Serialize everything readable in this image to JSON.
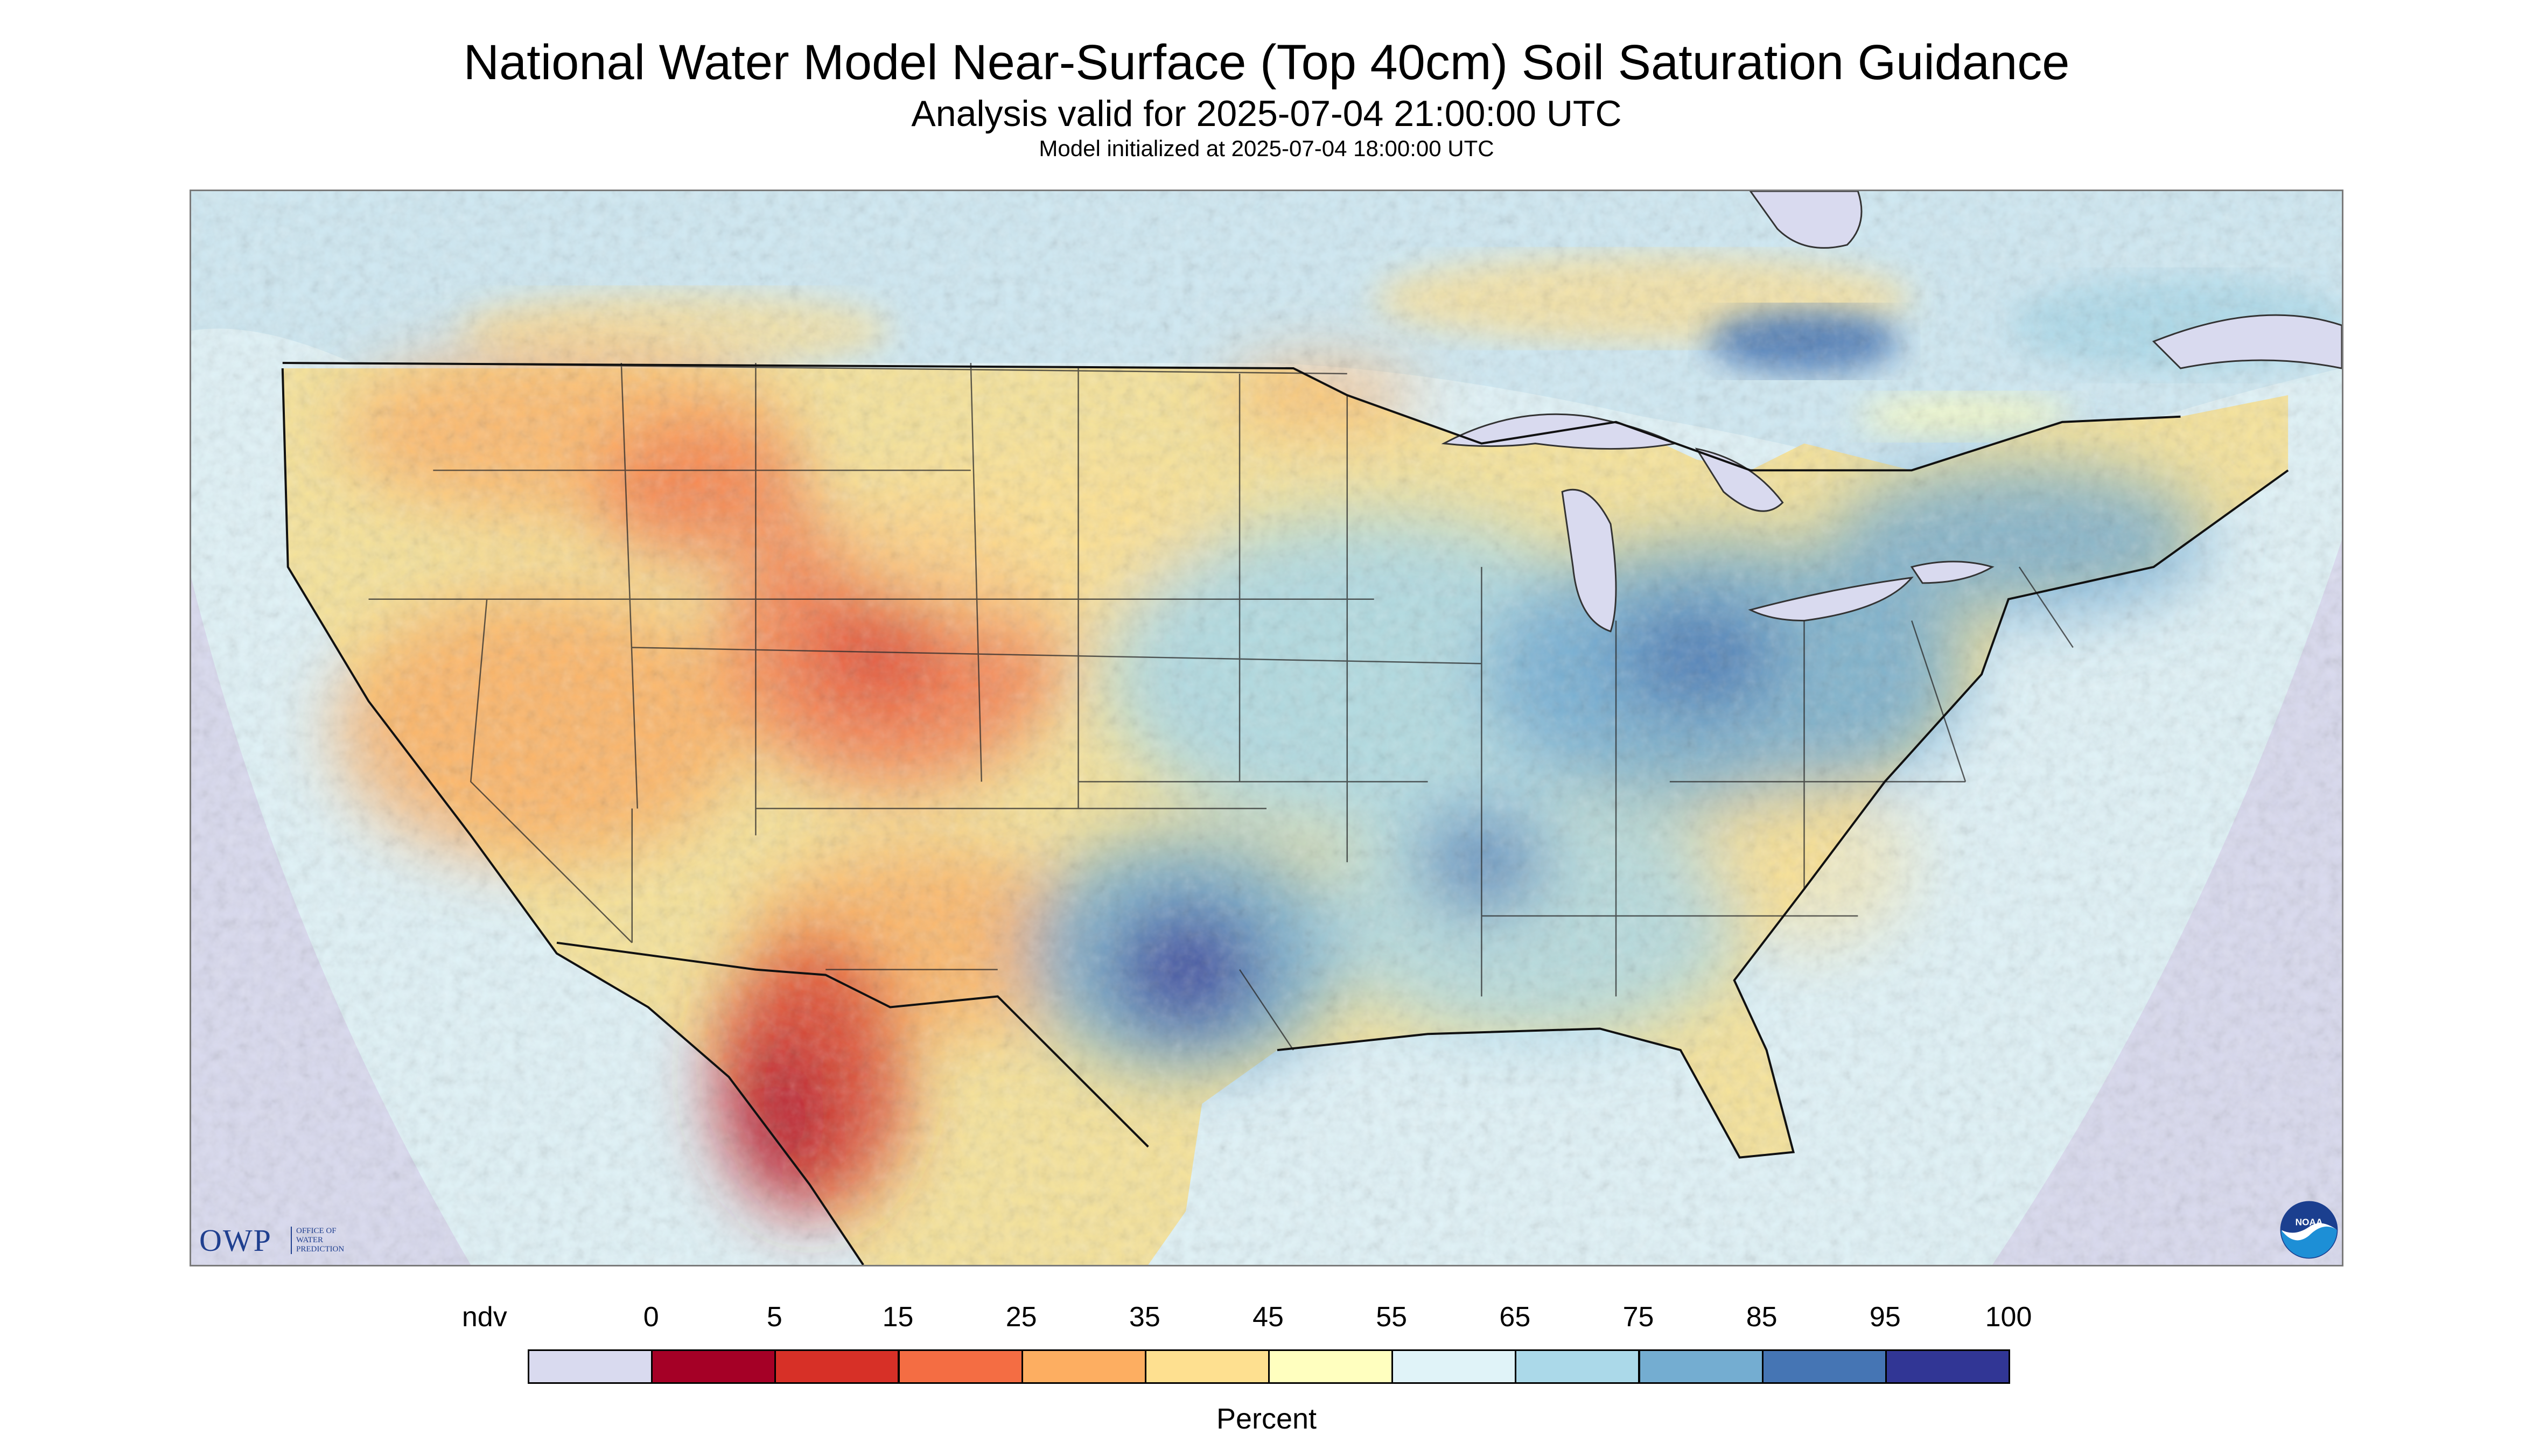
{
  "header": {
    "title": "National Water Model Near-Surface (Top 40cm) Soil Saturation Guidance",
    "subtitle": "Analysis valid for 2025-07-04 21:00:00 UTC",
    "init_line": "Model initialized at 2025-07-04 18:00:00 UTC"
  },
  "map": {
    "region": "CONUS",
    "variable": "near-surface soil saturation",
    "colors": {
      "nodata": "#d9daef",
      "water": "#d9daef",
      "boundary": "#2a2a2a"
    },
    "saturation_regions": [
      {
        "area": "Mexico Sierra Madre",
        "class": "5-15"
      },
      {
        "area": "Colorado / Utah",
        "class": "15-25"
      },
      {
        "area": "Idaho / Montana",
        "class": "15-25"
      },
      {
        "area": "Nevada / California",
        "class": "25-35"
      },
      {
        "area": "Great Plains",
        "class": "35-45"
      },
      {
        "area": "Central Texas",
        "class": "85-95"
      },
      {
        "area": "Ohio Valley",
        "class": "75-85"
      },
      {
        "area": "Southeast",
        "class": "65-75"
      },
      {
        "area": "Ontario",
        "class": "75-85"
      },
      {
        "area": "Northeast",
        "class": "65-75"
      }
    ]
  },
  "logos": {
    "owp_text": "OWP",
    "owp_small": "OFFICE OF\nWATER\nPREDICTION",
    "noaa_text": "NOAA"
  },
  "legend": {
    "label": "Percent",
    "ticks": [
      "ndv",
      "0",
      "5",
      "15",
      "25",
      "35",
      "45",
      "55",
      "65",
      "75",
      "85",
      "95",
      "100"
    ],
    "colors": [
      "#d9daef",
      "#a50026",
      "#d73027",
      "#f46d43",
      "#fdae61",
      "#fee090",
      "#ffffbf",
      "#e0f3f8",
      "#abd9e9",
      "#74add1",
      "#4575b4",
      "#313695"
    ]
  }
}
